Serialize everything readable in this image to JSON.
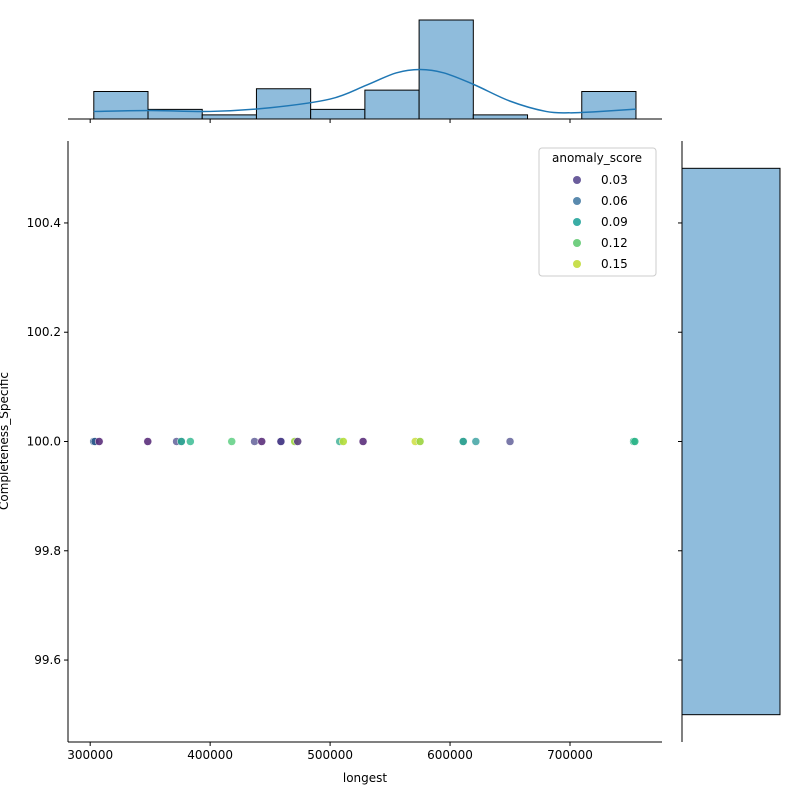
{
  "chart_data": {
    "type": "scatter",
    "title": "",
    "xlabel": "longest",
    "ylabel": "Completeness_Specific",
    "xlim": [
      281500,
      776700
    ],
    "ylim": [
      99.45,
      100.55
    ],
    "xticks": [
      300000,
      400000,
      500000,
      600000,
      700000
    ],
    "xtick_labels": [
      "300000",
      "400000",
      "500000",
      "600000",
      "700000"
    ],
    "yticks": [
      99.6,
      99.8,
      100.0,
      100.2,
      100.4
    ],
    "ytick_labels": [
      "99.6",
      "99.8",
      "100.0",
      "100.2",
      "100.4"
    ],
    "grid": false,
    "legend": {
      "title": "anomaly_score",
      "position": "top-right",
      "entries": [
        {
          "label": "0.03",
          "color": "#6b5d9c"
        },
        {
          "label": "0.06",
          "color": "#5a8aae"
        },
        {
          "label": "0.09",
          "color": "#3aada5"
        },
        {
          "label": "0.12",
          "color": "#72cf81"
        },
        {
          "label": "0.15",
          "color": "#c8df4e"
        }
      ]
    },
    "points": [
      {
        "x": 303000,
        "y": 100.0,
        "color": "#2f5c8c"
      },
      {
        "x": 304000,
        "y": 100.0,
        "color": "#2f5c8c"
      },
      {
        "x": 307500,
        "y": 100.0,
        "color": "#5b2f7b"
      },
      {
        "x": 348000,
        "y": 100.0,
        "color": "#5b2f7b"
      },
      {
        "x": 372000,
        "y": 100.0,
        "color": "#6b6aa0"
      },
      {
        "x": 376000,
        "y": 100.0,
        "color": "#1f9a8a"
      },
      {
        "x": 383500,
        "y": 100.0,
        "color": "#46c09a"
      },
      {
        "x": 418000,
        "y": 100.0,
        "color": "#67d28a"
      },
      {
        "x": 437000,
        "y": 100.0,
        "color": "#6b6aa0"
      },
      {
        "x": 443000,
        "y": 100.0,
        "color": "#5b2f7b"
      },
      {
        "x": 459000,
        "y": 100.0,
        "color": "#3b2e7e"
      },
      {
        "x": 470500,
        "y": 100.0,
        "color": "#9bd43f"
      },
      {
        "x": 473000,
        "y": 100.0,
        "color": "#5b3f80"
      },
      {
        "x": 508000,
        "y": 100.0,
        "color": "#4fb7a0"
      },
      {
        "x": 511000,
        "y": 100.0,
        "color": "#b5de3a"
      },
      {
        "x": 527500,
        "y": 100.0,
        "color": "#5b2f7b"
      },
      {
        "x": 571000,
        "y": 100.0,
        "color": "#d0e04a"
      },
      {
        "x": 575000,
        "y": 100.0,
        "color": "#9bd43f"
      },
      {
        "x": 611000,
        "y": 100.0,
        "color": "#1f9a8a"
      },
      {
        "x": 621500,
        "y": 100.0,
        "color": "#4aa8a8"
      },
      {
        "x": 650000,
        "y": 100.0,
        "color": "#6b6aa0"
      },
      {
        "x": 753000,
        "y": 100.0,
        "color": "#2fb58a"
      },
      {
        "x": 754000,
        "y": 100.0,
        "color": "#2fb58a"
      }
    ],
    "top_histogram": {
      "bin_edges": [
        303000,
        348200,
        393400,
        438600,
        483800,
        529000,
        574200,
        619400,
        664600,
        709800,
        755000
      ],
      "counts": [
        2,
        0.7,
        0.3,
        2.2,
        0.7,
        2.1,
        7.2,
        0.3,
        0,
        2
      ],
      "fill": "#8fbcdc",
      "edge": "#000000"
    },
    "top_kde": {
      "x": [
        303000,
        350000,
        400000,
        450000,
        500000,
        530000,
        555000,
        575000,
        595000,
        620000,
        650000,
        680000,
        700000,
        720000,
        755000
      ],
      "y": [
        0.55,
        0.62,
        0.55,
        0.82,
        1.45,
        2.45,
        3.35,
        3.6,
        3.35,
        2.5,
        1.3,
        0.55,
        0.45,
        0.52,
        0.72
      ],
      "ymax": 7.2,
      "color": "#1f77b4"
    },
    "right_histogram": {
      "y_range": [
        99.5,
        100.5
      ],
      "count": 1,
      "fill": "#8fbcdc",
      "edge": "#000000"
    }
  }
}
